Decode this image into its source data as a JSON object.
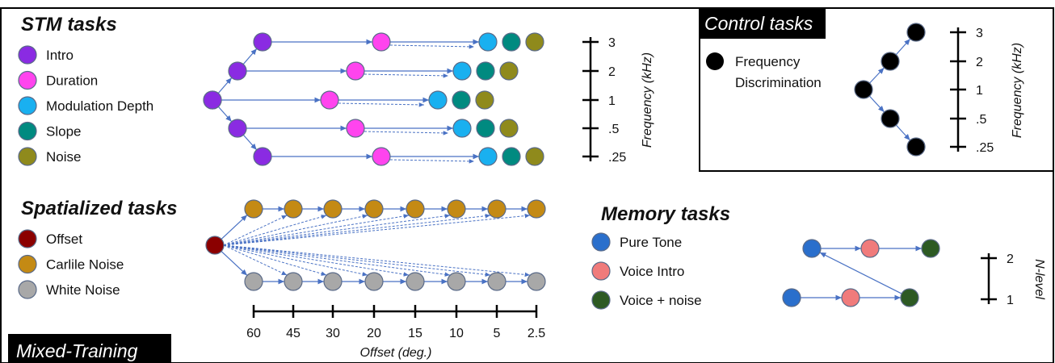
{
  "colors": {
    "intro": "#8a2be2",
    "duration": "#ff44ee",
    "modulation": "#19b0f0",
    "slope": "#008a80",
    "noise": "#8f8a1c",
    "black": "#000000",
    "offset": "#8b0000",
    "carlile": "#c48a14",
    "white_noise": "#a8a8a8",
    "pure_tone": "#2a6fcc",
    "voice_intro": "#f07b7b",
    "voice_noise": "#2d5a23",
    "arrow": "#4a72c4"
  },
  "stm": {
    "title": "STM tasks",
    "legend": [
      {
        "label": "Intro",
        "color_key": "intro"
      },
      {
        "label": "Duration",
        "color_key": "duration"
      },
      {
        "label": "Modulation Depth",
        "color_key": "modulation"
      },
      {
        "label": "Slope",
        "color_key": "slope"
      },
      {
        "label": "Noise",
        "color_key": "noise"
      }
    ],
    "axis_label": "Frequency (kHz)",
    "ticks": [
      "3",
      "2",
      "1",
      ".5",
      ".25"
    ]
  },
  "control": {
    "title": "Control tasks",
    "legend": [
      {
        "label_line1": "Frequency",
        "label_line2": "Discrimination",
        "color_key": "black"
      }
    ],
    "axis_label": "Frequency (kHz)",
    "ticks": [
      "3",
      "2",
      "1",
      ".5",
      ".25"
    ]
  },
  "spatial": {
    "title": "Spatialized tasks",
    "legend": [
      {
        "label": "Offset",
        "color_key": "offset"
      },
      {
        "label": "Carlile Noise",
        "color_key": "carlile"
      },
      {
        "label": "White Noise",
        "color_key": "white_noise"
      }
    ],
    "axis_label": "Offset (deg.)",
    "ticks": [
      "60",
      "45",
      "30",
      "20",
      "15",
      "10",
      "5",
      "2.5"
    ]
  },
  "memory": {
    "title": "Memory tasks",
    "legend": [
      {
        "label": "Pure Tone",
        "color_key": "pure_tone"
      },
      {
        "label": "Voice Intro",
        "color_key": "voice_intro"
      },
      {
        "label": "Voice + noise",
        "color_key": "voice_noise"
      }
    ],
    "axis_label": "N-level",
    "ticks": [
      "2",
      "1"
    ]
  },
  "footer": {
    "label": "Mixed-Training"
  }
}
